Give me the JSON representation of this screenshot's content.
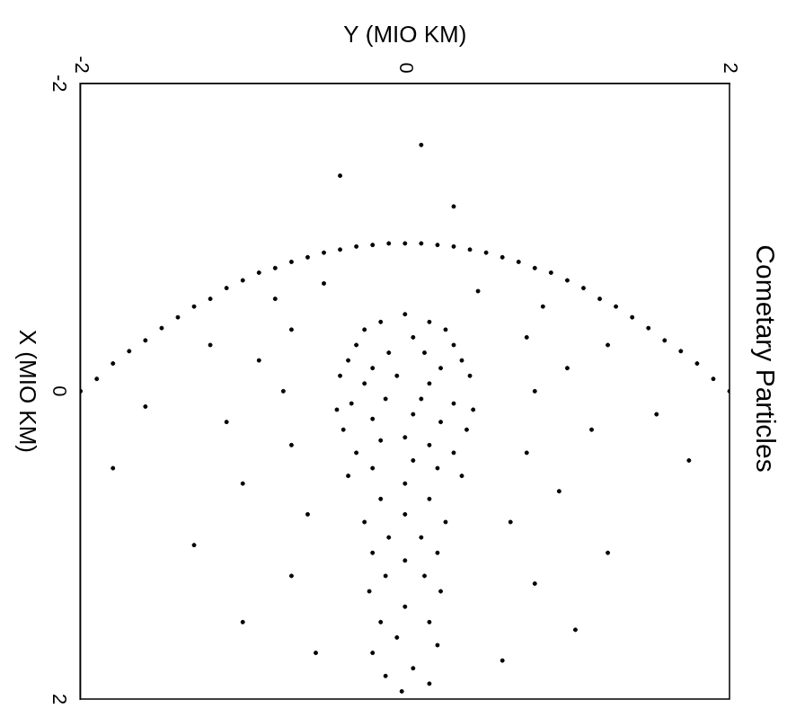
{
  "chart_data": {
    "type": "scatter",
    "title": "Cometary Particles",
    "x_label": "X (MIO KM)",
    "y_label": "Y (MIO KM)",
    "color": "#000000",
    "grid": false,
    "xlim": [
      -2,
      2
    ],
    "ylim": [
      -2,
      2
    ],
    "xticks": [
      -2,
      0,
      2
    ],
    "yticks": [
      -2,
      0,
      2
    ],
    "x": [
      0.0,
      -0.18,
      -0.33,
      -0.48,
      -0.6,
      -0.72,
      -0.8,
      -0.87,
      -0.92,
      -0.95,
      -0.96,
      -0.95,
      -0.92,
      -0.87,
      -0.8,
      -0.72,
      -0.6,
      -0.48,
      -0.33,
      -0.18,
      0.0,
      -0.08,
      -0.26,
      -0.41,
      -0.55,
      -0.67,
      -0.77,
      -0.84,
      -0.9,
      -0.94,
      -0.96,
      -0.96,
      -0.94,
      -0.9,
      -0.84,
      -0.77,
      -0.67,
      -0.55,
      -0.41,
      -0.26,
      -0.08,
      -0.5,
      -0.45,
      -0.45,
      -0.4,
      -0.4,
      -0.35,
      -0.3,
      -0.3,
      -0.25,
      -0.25,
      -0.2,
      -0.2,
      -0.15,
      -0.15,
      -0.1,
      -0.1,
      -0.1,
      -0.05,
      -0.05,
      0.05,
      0.05,
      0.08,
      0.08,
      0.12,
      0.12,
      0.15,
      0.18,
      0.2,
      0.25,
      0.25,
      0.3,
      0.32,
      0.35,
      0.4,
      0.4,
      0.45,
      0.5,
      0.5,
      0.55,
      0.55,
      0.6,
      0.7,
      0.7,
      0.8,
      0.85,
      0.85,
      0.95,
      0.95,
      1.05,
      1.05,
      1.1,
      1.2,
      1.2,
      1.3,
      1.3,
      1.4,
      1.5,
      1.5,
      1.6,
      1.65,
      1.7,
      1.8,
      1.85,
      1.9,
      1.95,
      -0.7,
      -0.65,
      -0.6,
      -0.55,
      -0.4,
      -0.35,
      -0.2,
      -0.15,
      0.0,
      0.0,
      0.2,
      0.25,
      0.35,
      0.4,
      0.6,
      0.65,
      0.8,
      0.85,
      1.0,
      1.05,
      1.2,
      1.25,
      1.5,
      1.55,
      1.7,
      1.75,
      0.1,
      0.15,
      0.5,
      0.45,
      -0.3,
      -0.3,
      -1.2,
      -1.4,
      -1.6
    ],
    "values": [
      -2.0,
      -1.8,
      -1.6,
      -1.4,
      -1.2,
      -1.0,
      -0.8,
      -0.6,
      -0.4,
      -0.2,
      0.0,
      0.2,
      0.4,
      0.6,
      0.8,
      1.0,
      1.2,
      1.4,
      1.6,
      1.8,
      2.0,
      -1.9,
      -1.7,
      -1.5,
      -1.3,
      -1.1,
      -0.9,
      -0.7,
      -0.5,
      -0.3,
      -0.1,
      0.1,
      0.3,
      0.5,
      0.7,
      0.9,
      1.1,
      1.3,
      1.5,
      1.7,
      1.9,
      0.0,
      -0.15,
      0.15,
      -0.25,
      0.25,
      0.05,
      -0.3,
      0.3,
      -0.1,
      0.12,
      -0.35,
      0.35,
      -0.2,
      0.22,
      -0.05,
      0.4,
      -0.4,
      0.15,
      -0.25,
      0.1,
      -0.12,
      0.3,
      -0.33,
      0.42,
      -0.42,
      0.05,
      -0.2,
      0.22,
      -0.38,
      0.38,
      0.0,
      -0.15,
      0.15,
      -0.3,
      0.3,
      0.05,
      -0.2,
      0.2,
      -0.35,
      0.35,
      0.0,
      -0.15,
      0.15,
      0.0,
      -0.25,
      0.25,
      -0.1,
      0.1,
      -0.2,
      0.2,
      0.0,
      -0.12,
      0.12,
      -0.22,
      0.22,
      0.0,
      -0.15,
      0.15,
      -0.05,
      0.2,
      -0.2,
      0.05,
      -0.12,
      0.15,
      -0.02,
      -0.5,
      0.45,
      -0.8,
      0.85,
      -0.7,
      0.75,
      -0.9,
      1.0,
      -0.75,
      0.8,
      -1.1,
      1.15,
      -0.7,
      0.75,
      -1.0,
      0.95,
      -0.6,
      0.65,
      -1.3,
      1.25,
      -0.7,
      0.8,
      -1.0,
      1.05,
      -0.55,
      0.6,
      -1.6,
      1.55,
      -1.8,
      1.75,
      -1.2,
      1.25,
      0.3,
      -0.4,
      0.1
    ]
  }
}
